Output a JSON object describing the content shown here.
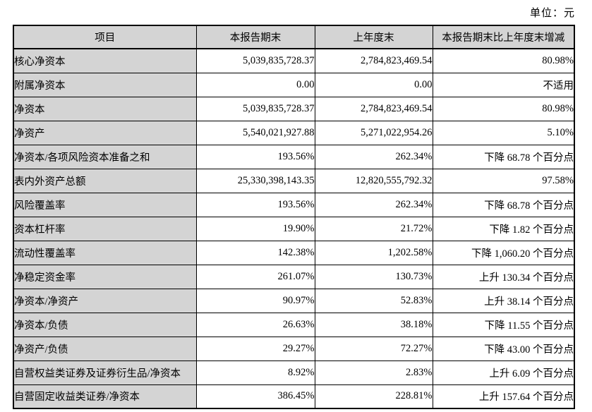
{
  "page": {
    "unit_label": "单位：元"
  },
  "table": {
    "headers": [
      "项目",
      "本报告期末",
      "上年度末",
      "本报告期末比上年度末增减"
    ],
    "rows": [
      {
        "item": "核心净资本",
        "current": "5,039,835,728.37",
        "previous": "2,784,823,469.54",
        "change": "80.98%"
      },
      {
        "item": "附属净资本",
        "current": "0.00",
        "previous": "0.00",
        "change": "不适用"
      },
      {
        "item": "净资本",
        "current": "5,039,835,728.37",
        "previous": "2,784,823,469.54",
        "change": "80.98%"
      },
      {
        "item": "净资产",
        "current": "5,540,021,927.88",
        "previous": "5,271,022,954.26",
        "change": "5.10%"
      },
      {
        "item": "净资本/各项风险资本准备之和",
        "current": "193.56%",
        "previous": "262.34%",
        "change": "下降 68.78 个百分点"
      },
      {
        "item": "表内外资产总额",
        "current": "25,330,398,143.35",
        "previous": "12,820,555,792.32",
        "change": "97.58%"
      },
      {
        "item": "风险覆盖率",
        "current": "193.56%",
        "previous": "262.34%",
        "change": "下降 68.78 个百分点"
      },
      {
        "item": "资本杠杆率",
        "current": "19.90%",
        "previous": "21.72%",
        "change": "下降 1.82 个百分点"
      },
      {
        "item": "流动性覆盖率",
        "current": "142.38%",
        "previous": "1,202.58%",
        "change": "下降 1,060.20 个百分点"
      },
      {
        "item": "净稳定资金率",
        "current": "261.07%",
        "previous": "130.73%",
        "change": "上升 130.34 个百分点"
      },
      {
        "item": "净资本/净资产",
        "current": "90.97%",
        "previous": "52.83%",
        "change": "上升 38.14 个百分点"
      },
      {
        "item": "净资本/负债",
        "current": "26.63%",
        "previous": "38.18%",
        "change": "下降 11.55 个百分点"
      },
      {
        "item": "净资产/负债",
        "current": "29.27%",
        "previous": "72.27%",
        "change": "下降 43.00 个百分点"
      },
      {
        "item": "自营权益类证券及证券衍生品/净资本",
        "current": "8.92%",
        "previous": "2.83%",
        "change": "上升 6.09 个百分点"
      },
      {
        "item": "自营固定收益类证券/净资本",
        "current": "386.45%",
        "previous": "228.81%",
        "change": "上升 157.64 个百分点"
      }
    ],
    "colors": {
      "header_bg": "#d4d4d4",
      "item_column_bg": "#d4d4d4",
      "border": "#000000",
      "text": "#000000",
      "data_cell_bg": "#ffffff"
    }
  }
}
